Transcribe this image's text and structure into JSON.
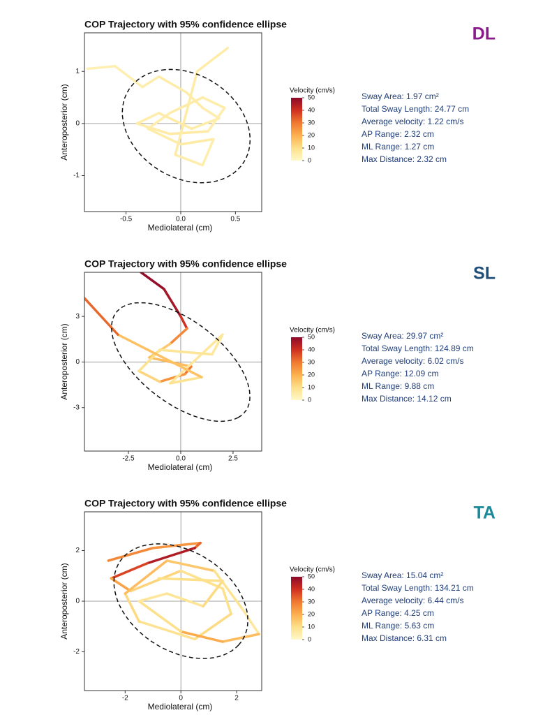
{
  "chart_data": [
    {
      "type": "line",
      "title": "COP Trajectory with 95% confidence ellipse",
      "label": "DL",
      "label_color": "#8b1a8b",
      "xlabel": "Mediolateral (cm)",
      "ylabel": "Anteroposterior (cm)",
      "xlim": [
        -0.88,
        0.74
      ],
      "ylim": [
        -1.69,
        1.74
      ],
      "xticks": [
        -0.5,
        {
          "value": 0,
          "label": "0.0"
        },
        0.5
      ],
      "yticks": [
        -1,
        0,
        1
      ],
      "zero_lines": true,
      "series": {
        "x": [
          -0.85,
          -0.6,
          -0.35,
          -0.2,
          0.05,
          0.2,
          0.35,
          0.1,
          -0.2,
          -0.4,
          -0.1,
          0.25,
          0.4,
          0.2,
          -0.1,
          -0.3,
          0.0,
          0.3,
          0.2,
          -0.05,
          0.15,
          0.43
        ],
        "y": [
          1.05,
          1.1,
          0.7,
          0.9,
          0.6,
          0.3,
          0.1,
          -0.1,
          0.2,
          0.0,
          -0.2,
          -0.15,
          0.3,
          0.5,
          0.2,
          -0.1,
          -0.4,
          -0.3,
          -0.8,
          -0.6,
          1.0,
          1.45
        ],
        "velocity": [
          4,
          3,
          5,
          4,
          6,
          5,
          4,
          6,
          5,
          4,
          7,
          5,
          4,
          6,
          5,
          4,
          6,
          5,
          4,
          5,
          6,
          4
        ]
      },
      "ellipse": {
        "cx": 0.05,
        "cy": -0.05,
        "a": 1.1,
        "b": 0.56,
        "angle": 100
      },
      "colorbar": {
        "label": "Velocity (cm/s)",
        "lim": [
          0,
          50
        ],
        "ticks": [
          0,
          10,
          20,
          30,
          40,
          50
        ],
        "colors": [
          "#fff8c8",
          "#fde08a",
          "#fdb050",
          "#f07a30",
          "#d03020",
          "#8b0a2a"
        ]
      },
      "stats": [
        "Sway Area: 1.97 cm²",
        "Total Sway Length: 24.77 cm",
        "Average velocity: 1.22 cm/s",
        "AP Range: 2.32 cm",
        "ML Range: 1.27 cm",
        "Max Distance: 2.32 cm"
      ]
    },
    {
      "type": "line",
      "title": "COP Trajectory with 95% confidence ellipse",
      "label": "SL",
      "label_color": "#1f4e79",
      "xlabel": "Mediolateral (cm)",
      "ylabel": "Anteroposterior (cm)",
      "xlim": [
        -4.6,
        3.87
      ],
      "ylim": [
        -5.86,
        5.9
      ],
      "xticks": [
        -2.5,
        {
          "value": 0,
          "label": "0.0"
        },
        2.5
      ],
      "yticks": [
        -3,
        0,
        3
      ],
      "zero_lines": true,
      "series": {
        "x": [
          -1.9,
          -0.8,
          0.0,
          0.3,
          -0.5,
          -1.5,
          0.5,
          0.2,
          -1.0,
          -2.0,
          -1.0,
          1.5,
          2.0,
          -0.5,
          1.0,
          -3.0,
          -4.6
        ],
        "y": [
          5.9,
          4.8,
          3.0,
          2.2,
          1.2,
          0.3,
          -0.3,
          -0.8,
          -1.3,
          -0.6,
          0.8,
          0.5,
          1.8,
          -1.4,
          -1.0,
          1.8,
          4.2
        ],
        "velocity": [
          50,
          48,
          45,
          35,
          20,
          10,
          25,
          35,
          15,
          10,
          8,
          8,
          5,
          10,
          8,
          25,
          40
        ]
      },
      "ellipse": {
        "cx": 0.0,
        "cy": 0.0,
        "a": 4.57,
        "b": 2.3,
        "angle": -53
      },
      "colorbar": {
        "label": "Velocity (cm/s)",
        "lim": [
          0,
          50
        ],
        "ticks": [
          0,
          10,
          20,
          30,
          40,
          50
        ],
        "colors": [
          "#fff8c8",
          "#fde08a",
          "#fdb050",
          "#f07a30",
          "#d03020",
          "#8b0a2a"
        ]
      },
      "stats": [
        "Sway Area: 29.97 cm²",
        "Total Sway Length: 124.89 cm",
        "Average velocity: 6.02 cm/s",
        "AP Range: 12.09 cm",
        "ML Range: 9.88 cm",
        "Max Distance: 14.12 cm"
      ]
    },
    {
      "type": "line",
      "title": "COP Trajectory with 95% confidence ellipse",
      "label": "TA",
      "label_color": "#1a8a9a",
      "xlabel": "Mediolateral (cm)",
      "ylabel": "Anteroposterior (cm)",
      "xlim": [
        -3.46,
        2.9
      ],
      "ylim": [
        -3.53,
        3.53
      ],
      "xticks": [
        -2,
        0,
        2
      ],
      "yticks": [
        -2,
        0,
        2
      ],
      "zero_lines": true,
      "series": {
        "x": [
          -2.6,
          -1.0,
          0.7,
          0.5,
          -1.2,
          -2.5,
          -1.8,
          0.0,
          1.5,
          1.8,
          0.5,
          -1.5,
          -2.0,
          -0.5,
          1.2,
          2.2,
          2.8,
          1.5,
          0.0,
          -1.5,
          -0.5,
          0.8,
          1.5,
          -0.8
        ],
        "y": [
          1.6,
          2.1,
          2.3,
          2.1,
          1.5,
          0.9,
          0.4,
          1.2,
          0.5,
          -0.5,
          -1.5,
          -0.8,
          0.3,
          1.6,
          1.2,
          -0.3,
          -1.3,
          -1.6,
          -1.2,
          0.0,
          0.3,
          -0.2,
          0.8,
          0.9
        ],
        "velocity": [
          25,
          30,
          20,
          45,
          45,
          30,
          15,
          10,
          8,
          12,
          10,
          8,
          15,
          20,
          10,
          8,
          5,
          30,
          12,
          8,
          6,
          10,
          12,
          8
        ]
      },
      "ellipse": {
        "cx": 0.0,
        "cy": 0.0,
        "a": 2.7,
        "b": 1.9,
        "angle": -40
      },
      "colorbar": {
        "label": "Velocity (cm/s)",
        "lim": [
          0,
          50
        ],
        "ticks": [
          0,
          10,
          20,
          30,
          40,
          50
        ],
        "colors": [
          "#fff8c8",
          "#fde08a",
          "#fdb050",
          "#f07a30",
          "#d03020",
          "#8b0a2a"
        ]
      },
      "stats": [
        "Sway Area: 15.04 cm²",
        "Total Sway Length: 134.21 cm",
        "Average velocity: 6.44 cm/s",
        "AP Range: 4.25 cm",
        "ML Range: 5.63 cm",
        "Max Distance: 6.31 cm"
      ]
    }
  ]
}
